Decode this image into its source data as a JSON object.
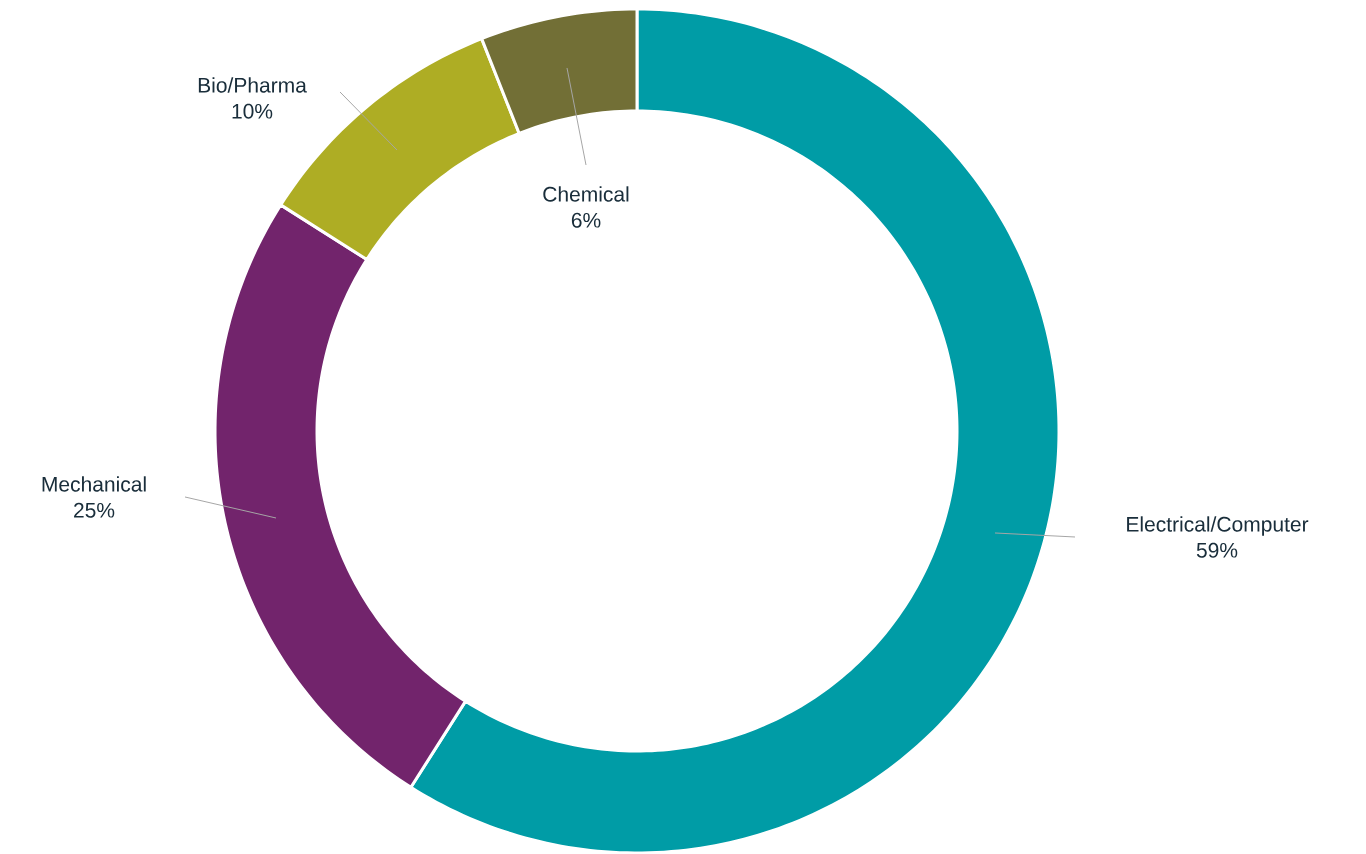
{
  "chart_data": {
    "type": "donut",
    "categories": [
      "Electrical/Computer",
      "Mechanical",
      "Bio/Pharma",
      "Chemical"
    ],
    "values": [
      59,
      25,
      10,
      6
    ],
    "colors": [
      "#009ca6",
      "#72246c",
      "#aead24",
      "#726f36"
    ],
    "data_labels": true,
    "value_labels": [
      "59%",
      "25%",
      "10%",
      "6%"
    ]
  }
}
